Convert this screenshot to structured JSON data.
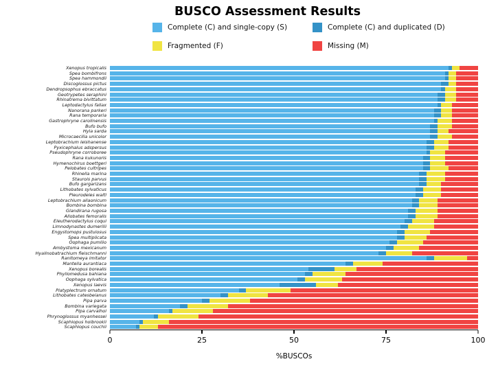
{
  "title": "BUSCO Assessment Results",
  "legend": {
    "items": [
      {
        "key": "single_copy",
        "label": "Complete (C) and single-copy (S)",
        "color": "#56B4E9"
      },
      {
        "key": "duplicated",
        "label": "Complete (C) and duplicated (D)",
        "color": "#3492C7"
      },
      {
        "key": "fragmented",
        "label": "Fragmented (F)",
        "color": "#F0E442"
      },
      {
        "key": "missing",
        "label": "Missing (M)",
        "color": "#F04442"
      }
    ]
  },
  "chart_data": {
    "type": "bar",
    "stacked": true,
    "orientation": "horizontal",
    "title": "BUSCO Assessment Results",
    "xlabel": "%BUSCOs",
    "xlim": [
      0,
      100
    ],
    "x_ticks": [
      0,
      25,
      50,
      75,
      100
    ],
    "legend_position": "top",
    "grid": false,
    "categories": [
      "Xenopus tropicalis",
      "Spea bombifrons",
      "Spea hammondii",
      "Discoglossus pictus",
      "Dendropsophus ebraccatus",
      "Geotrypetes seraphini",
      "Rhinatrema bivittatum",
      "Leptodactylus fallax",
      "Nanorana parkeri",
      "Rana temporaria",
      "Gastrophryne carolinensis",
      "Bufo bufo",
      "Hyla sarda",
      "Microcaecilia unicolor",
      "Leptobrachium leishanense",
      "Pyxicephalus adspersus",
      "Pseudophryne corroboree",
      "Rana kukunoris",
      "Hymenochirus boettgeri",
      "Pelobates cultripes",
      "Rhinella marina",
      "Staurois parvus",
      "Bufo gargarizans",
      "Lithobates sylvaticus",
      "Pleurodeles waltl",
      "Leptobrachium ailaonicum",
      "Bombina bombina",
      "Glandirana rugosa",
      "Allobates femoralis",
      "Eleutherodactylus coqui",
      "Limnodynastes dumerilii",
      "Engystomops pustulosus",
      "Spea multiplicata",
      "Oophaga pumilio",
      "Ambystoma mexicanum",
      "Hyalinobatrachium fleischmanni",
      "Ranitomeya imitator",
      "Mantella aurantiaca",
      "Xenopus borealis",
      "Phyllomedusa bahiana",
      "Oophaga sylvatica",
      "Xenopus laevis",
      "Platyplectrum ornatum",
      "Lithobates catesbeianus",
      "Pipa parva",
      "Bombina variegata",
      "Pipa carvalhoi",
      "Phrynoglossus myanhessei",
      "Scaphiopus holbrookii",
      "Scaphiopus couchii"
    ],
    "series": [
      {
        "key": "single_copy",
        "name": "Complete (C) and single-copy (S)",
        "color": "#56B4E9",
        "values": [
          92,
          91,
          91,
          90,
          90,
          89,
          89,
          89,
          88,
          88,
          88,
          87,
          87,
          87,
          86,
          86,
          86,
          85,
          85,
          85,
          84,
          84,
          84,
          83,
          83,
          82,
          82,
          81,
          81,
          80,
          79,
          78,
          78,
          76,
          75,
          73,
          86,
          64,
          54,
          53,
          51,
          46,
          35,
          30,
          25,
          19,
          16,
          12,
          8,
          7
        ]
      },
      {
        "key": "duplicated",
        "name": "Complete (C) and duplicated (D)",
        "color": "#3492C7",
        "values": [
          1,
          1,
          1,
          2,
          1,
          2,
          2,
          1,
          2,
          2,
          1,
          2,
          2,
          2,
          2,
          2,
          1,
          2,
          2,
          2,
          2,
          2,
          2,
          2,
          2,
          2,
          2,
          2,
          2,
          2,
          2,
          2,
          2,
          2,
          2,
          2,
          2,
          2,
          7,
          2,
          2,
          10,
          2,
          2,
          2,
          2,
          1,
          1,
          1,
          1
        ]
      },
      {
        "key": "fragmented",
        "name": "Fragmented (F)",
        "color": "#F0E442",
        "values": [
          2,
          2,
          2,
          2,
          3,
          3,
          3,
          3,
          3,
          3,
          4,
          4,
          3,
          4,
          4,
          4,
          4,
          4,
          4,
          5,
          5,
          5,
          4,
          5,
          5,
          5,
          5,
          6,
          6,
          6,
          7,
          7,
          6,
          7,
          7,
          7,
          9,
          8,
          6,
          9,
          10,
          6,
          12,
          11,
          11,
          11,
          11,
          11,
          7,
          5
        ]
      },
      {
        "key": "missing",
        "name": "Missing (M)",
        "color": "#F04442",
        "values": [
          5,
          6,
          6,
          6,
          6,
          6,
          6,
          7,
          7,
          7,
          7,
          7,
          8,
          7,
          8,
          8,
          9,
          9,
          9,
          8,
          9,
          9,
          10,
          10,
          10,
          11,
          11,
          11,
          11,
          12,
          12,
          13,
          14,
          15,
          16,
          18,
          3,
          26,
          33,
          36,
          37,
          38,
          51,
          57,
          62,
          68,
          72,
          76,
          84,
          87
        ]
      }
    ]
  }
}
